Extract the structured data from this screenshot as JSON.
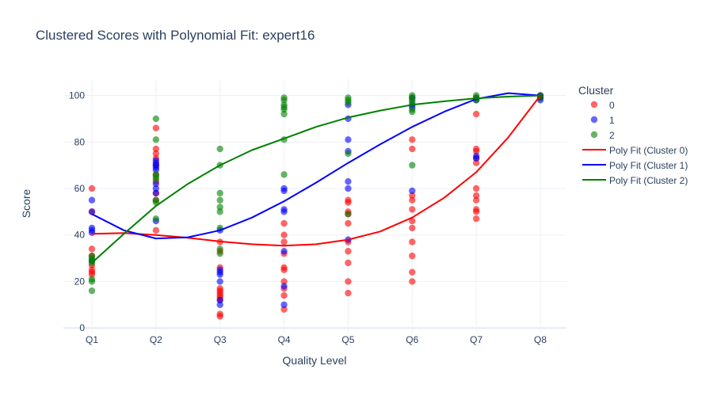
{
  "chart_data": {
    "type": "scatter",
    "title": "Clustered Scores with Polynomial Fit: expert16",
    "xlabel": "Quality Level",
    "ylabel": "Score",
    "categories": [
      "Q1",
      "Q2",
      "Q3",
      "Q4",
      "Q5",
      "Q6",
      "Q7",
      "Q8"
    ],
    "y_ticks": [
      0,
      20,
      40,
      60,
      80,
      100
    ],
    "ylim": [
      -2,
      107
    ],
    "legend_title": "Cluster",
    "legend_position": "right",
    "series": [
      {
        "name": "0",
        "color": "#ff0000",
        "points": [
          [
            0,
            60
          ],
          [
            0,
            50
          ],
          [
            0,
            34
          ],
          [
            0,
            31
          ],
          [
            0,
            27
          ],
          [
            0,
            25
          ],
          [
            0,
            24
          ],
          [
            0,
            23
          ],
          [
            1,
            86
          ],
          [
            1,
            77
          ],
          [
            1,
            75
          ],
          [
            1,
            73
          ],
          [
            1,
            70
          ],
          [
            1,
            66
          ],
          [
            1,
            63
          ],
          [
            1,
            58
          ],
          [
            1,
            55
          ],
          [
            1,
            42
          ],
          [
            2,
            37
          ],
          [
            2,
            33
          ],
          [
            2,
            26
          ],
          [
            2,
            17
          ],
          [
            2,
            16
          ],
          [
            2,
            15
          ],
          [
            2,
            14
          ],
          [
            2,
            13
          ],
          [
            2,
            12
          ],
          [
            2,
            6
          ],
          [
            2,
            5
          ],
          [
            3,
            45
          ],
          [
            3,
            40
          ],
          [
            3,
            37
          ],
          [
            3,
            32
          ],
          [
            3,
            26
          ],
          [
            3,
            25
          ],
          [
            3,
            20
          ],
          [
            3,
            17
          ],
          [
            3,
            14
          ],
          [
            3,
            8
          ],
          [
            4,
            55
          ],
          [
            4,
            54
          ],
          [
            4,
            50
          ],
          [
            4,
            49
          ],
          [
            4,
            45
          ],
          [
            4,
            37
          ],
          [
            4,
            33
          ],
          [
            4,
            28
          ],
          [
            4,
            20
          ],
          [
            4,
            15
          ],
          [
            5,
            81
          ],
          [
            5,
            77
          ],
          [
            5,
            57
          ],
          [
            5,
            55
          ],
          [
            5,
            51
          ],
          [
            5,
            46
          ],
          [
            5,
            43
          ],
          [
            5,
            37
          ],
          [
            5,
            31
          ],
          [
            5,
            24
          ],
          [
            5,
            20
          ],
          [
            6,
            92
          ],
          [
            6,
            77
          ],
          [
            6,
            76
          ],
          [
            6,
            73
          ],
          [
            6,
            71
          ],
          [
            6,
            60
          ],
          [
            6,
            57
          ],
          [
            6,
            55
          ],
          [
            6,
            51
          ],
          [
            6,
            50
          ],
          [
            6,
            47
          ],
          [
            7,
            100
          ],
          [
            7,
            99
          ]
        ]
      },
      {
        "name": "1",
        "color": "#0000ff",
        "points": [
          [
            0,
            55
          ],
          [
            0,
            50
          ],
          [
            0,
            43
          ],
          [
            0,
            42
          ],
          [
            0,
            41
          ],
          [
            0,
            29
          ],
          [
            1,
            72
          ],
          [
            1,
            71
          ],
          [
            1,
            70
          ],
          [
            1,
            69
          ],
          [
            1,
            68
          ],
          [
            1,
            62
          ],
          [
            1,
            60
          ],
          [
            1,
            58
          ],
          [
            1,
            46
          ],
          [
            2,
            42
          ],
          [
            2,
            25
          ],
          [
            2,
            24
          ],
          [
            2,
            23
          ],
          [
            2,
            20
          ],
          [
            2,
            12
          ],
          [
            2,
            10
          ],
          [
            3,
            60
          ],
          [
            3,
            59
          ],
          [
            3,
            51
          ],
          [
            3,
            50
          ],
          [
            3,
            33
          ],
          [
            3,
            18
          ],
          [
            3,
            10
          ],
          [
            4,
            96
          ],
          [
            4,
            90
          ],
          [
            4,
            81
          ],
          [
            4,
            76
          ],
          [
            4,
            63
          ],
          [
            4,
            60
          ],
          [
            4,
            38
          ],
          [
            5,
            99
          ],
          [
            5,
            96
          ],
          [
            5,
            95
          ],
          [
            5,
            59
          ],
          [
            6,
            99
          ],
          [
            6,
            98
          ],
          [
            6,
            74
          ],
          [
            6,
            73
          ],
          [
            7,
            100
          ],
          [
            7,
            99
          ],
          [
            7,
            98
          ]
        ]
      },
      {
        "name": "2",
        "color": "#008000",
        "points": [
          [
            0,
            31
          ],
          [
            0,
            30
          ],
          [
            0,
            29
          ],
          [
            0,
            28
          ],
          [
            0,
            21
          ],
          [
            0,
            20
          ],
          [
            0,
            16
          ],
          [
            1,
            90
          ],
          [
            1,
            81
          ],
          [
            1,
            66
          ],
          [
            1,
            65
          ],
          [
            1,
            64
          ],
          [
            1,
            55
          ],
          [
            1,
            54
          ],
          [
            1,
            47
          ],
          [
            2,
            77
          ],
          [
            2,
            70
          ],
          [
            2,
            58
          ],
          [
            2,
            55
          ],
          [
            2,
            52
          ],
          [
            2,
            50
          ],
          [
            2,
            43
          ],
          [
            2,
            34
          ],
          [
            2,
            32
          ],
          [
            3,
            99
          ],
          [
            3,
            98
          ],
          [
            3,
            96
          ],
          [
            3,
            95
          ],
          [
            3,
            94
          ],
          [
            3,
            92
          ],
          [
            3,
            81
          ],
          [
            3,
            66
          ],
          [
            4,
            99
          ],
          [
            4,
            98
          ],
          [
            4,
            97
          ],
          [
            4,
            75
          ],
          [
            4,
            49
          ],
          [
            5,
            100
          ],
          [
            5,
            99
          ],
          [
            5,
            98
          ],
          [
            5,
            97
          ],
          [
            5,
            94
          ],
          [
            5,
            93
          ],
          [
            5,
            70
          ],
          [
            6,
            100
          ],
          [
            6,
            99
          ],
          [
            6,
            98
          ],
          [
            7,
            100
          ],
          [
            7,
            99
          ]
        ]
      }
    ],
    "fits": [
      {
        "name": "Poly Fit (Cluster 0)",
        "color": "#ff0000",
        "points": [
          [
            0,
            40.5
          ],
          [
            0.5,
            40.8
          ],
          [
            1,
            40
          ],
          [
            1.5,
            38.8
          ],
          [
            2,
            37.2
          ],
          [
            2.5,
            36
          ],
          [
            3,
            35.4
          ],
          [
            3.5,
            36
          ],
          [
            4,
            38
          ],
          [
            4.5,
            41.5
          ],
          [
            5,
            47.5
          ],
          [
            5.5,
            56
          ],
          [
            6,
            67
          ],
          [
            6.5,
            82
          ],
          [
            7,
            100
          ]
        ]
      },
      {
        "name": "Poly Fit (Cluster 1)",
        "color": "#0000ff",
        "points": [
          [
            0,
            49
          ],
          [
            0.5,
            42
          ],
          [
            1,
            38.5
          ],
          [
            1.5,
            39
          ],
          [
            2,
            42
          ],
          [
            2.5,
            47.5
          ],
          [
            3,
            54.5
          ],
          [
            3.5,
            62.5
          ],
          [
            4,
            71
          ],
          [
            4.5,
            79
          ],
          [
            5,
            86.5
          ],
          [
            5.5,
            93
          ],
          [
            6,
            98.5
          ],
          [
            6.5,
            101
          ],
          [
            7,
            100
          ]
        ]
      },
      {
        "name": "Poly Fit (Cluster 2)",
        "color": "#008000",
        "points": [
          [
            0,
            28
          ],
          [
            0.5,
            40.5
          ],
          [
            1,
            52.5
          ],
          [
            1.5,
            62
          ],
          [
            2,
            70
          ],
          [
            2.5,
            76.5
          ],
          [
            3,
            81.5
          ],
          [
            3.5,
            86.5
          ],
          [
            4,
            90.5
          ],
          [
            4.5,
            93.5
          ],
          [
            5,
            96
          ],
          [
            5.5,
            97.5
          ],
          [
            6,
            98.8
          ],
          [
            6.5,
            99.5
          ],
          [
            7,
            100
          ]
        ]
      }
    ]
  }
}
